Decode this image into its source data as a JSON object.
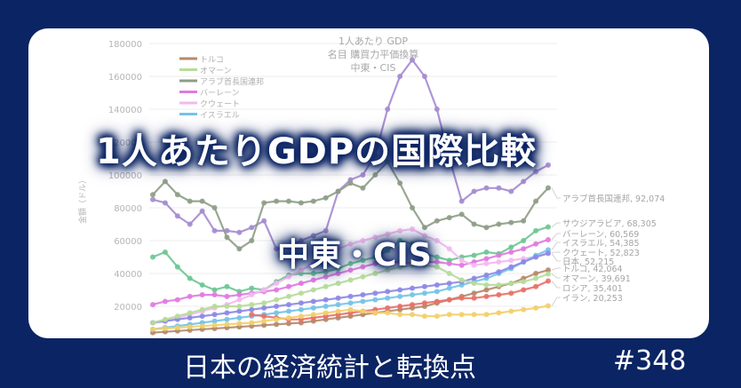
{
  "banner": {
    "main_title": "1人あたりGDPの国際比較",
    "subtitle": "中東・CIS",
    "series_name": "日本の経済統計と転換点",
    "episode": "#348",
    "colors": {
      "background": "#0b2463",
      "card": "#ffffff",
      "text": "#ffffff"
    }
  },
  "chart_data": {
    "type": "line",
    "title": [
      "1人あたり GDP",
      "名目 購買力平価換算",
      "中東・CIS"
    ],
    "xlabel": "",
    "ylabel": "金額（ドル）",
    "ylim": [
      0,
      180000
    ],
    "yticks": [
      "20000",
      "40000",
      "60000",
      "80000",
      "100000",
      "120000",
      "140000",
      "160000",
      "180000"
    ],
    "grid": true,
    "legend_position": "upper-left",
    "legend": [
      {
        "name": "トルコ",
        "color": "#b48a6c"
      },
      {
        "name": "オマーン",
        "color": "#b6dc9a"
      },
      {
        "name": "アラブ首長国連邦",
        "color": "#8e9d86"
      },
      {
        "name": "バーレーン",
        "color": "#e07ae0"
      },
      {
        "name": "クウェート",
        "color": "#f3b9ef"
      },
      {
        "name": "イスラエル",
        "color": "#74c3e8"
      }
    ],
    "series": [
      {
        "name": "",
        "color": "#a58bd0",
        "end_label": "",
        "values": [
          85000,
          83000,
          75000,
          70000,
          78000,
          66000,
          66000,
          65000,
          68000,
          72000,
          55000,
          56000,
          60000,
          63000,
          66000,
          90000,
          97000,
          100000,
          112000,
          140000,
          160000,
          170000,
          160000,
          140000,
          110000,
          84000,
          90000,
          92000,
          92000,
          90000,
          96000,
          102000,
          106000
        ]
      },
      {
        "name": "アラブ首長国連邦",
        "color": "#8e9d86",
        "end_label": "アラブ首長国連邦, 92,074",
        "values": [
          88000,
          96000,
          88000,
          84000,
          84000,
          80000,
          62000,
          55000,
          60000,
          83000,
          84000,
          84000,
          83000,
          84000,
          86000,
          90000,
          95000,
          92000,
          100000,
          108000,
          95000,
          80000,
          68000,
          72000,
          74000,
          76000,
          70000,
          68000,
          70000,
          71000,
          72000,
          84000,
          92074
        ]
      },
      {
        "name": "サウジアラビア",
        "color": "#6dc693",
        "end_label": "サウジアラビア, 68,305",
        "values": [
          50000,
          53000,
          44000,
          37000,
          33000,
          30000,
          32000,
          29000,
          31000,
          30000,
          35000,
          39000,
          40000,
          40000,
          41000,
          43000,
          46000,
          48000,
          50000,
          54000,
          60000,
          58000,
          52000,
          50000,
          48000,
          50000,
          51000,
          53000,
          52000,
          56000,
          60000,
          66000,
          68305
        ]
      },
      {
        "name": "バーレーン",
        "color": "#e07ae0",
        "end_label": "バーレーン, 60,569",
        "values": [
          21000,
          23000,
          24000,
          26000,
          27000,
          27000,
          26000,
          27000,
          28000,
          29000,
          30000,
          32000,
          34000,
          36000,
          38000,
          40000,
          42000,
          44000,
          46000,
          47000,
          47000,
          46000,
          47000,
          47000,
          46000,
          45000,
          47000,
          49000,
          51000,
          53000,
          55000,
          58000,
          60569
        ]
      },
      {
        "name": "クウェート",
        "color": "#f3b9ef",
        "end_label": "クウェート, 52,823",
        "values": [
          10000,
          11000,
          13000,
          15000,
          17000,
          19000,
          21000,
          24000,
          27000,
          30000,
          34000,
          38000,
          42000,
          46000,
          50000,
          55000,
          58000,
          60000,
          62000,
          64000,
          66000,
          67000,
          63000,
          60000,
          55000,
          48000,
          45000,
          46000,
          47000,
          48000,
          49000,
          50000,
          52823
        ]
      },
      {
        "name": "イスラエル",
        "color": "#74c3e8",
        "end_label": "イスラエル, 54,385",
        "values": [
          6000,
          7000,
          8000,
          9000,
          10000,
          11000,
          12000,
          13000,
          14000,
          15000,
          16000,
          17000,
          18000,
          19000,
          20000,
          21000,
          22000,
          23000,
          24000,
          25000,
          26000,
          27000,
          28000,
          29000,
          31000,
          33000,
          35000,
          37000,
          40000,
          43000,
          47000,
          51000,
          54385
        ]
      },
      {
        "name": "日本",
        "color": "#8c88e6",
        "end_label": "日本, 52,215",
        "values": [
          10000,
          11000,
          12000,
          13000,
          14000,
          15000,
          16000,
          17000,
          18000,
          19000,
          20000,
          21000,
          22000,
          23000,
          24000,
          25000,
          26000,
          27000,
          28000,
          29000,
          30000,
          31000,
          32000,
          33000,
          34000,
          35000,
          37000,
          39000,
          41000,
          44000,
          47000,
          50000,
          52215
        ]
      },
      {
        "name": "トルコ",
        "color": "#b48a6c",
        "end_label": "トルコ, 42,064",
        "values": [
          4000,
          4500,
          5000,
          5500,
          6000,
          6500,
          7000,
          7500,
          8000,
          8500,
          9000,
          9500,
          10000,
          11000,
          12000,
          13000,
          14000,
          15000,
          16000,
          17000,
          18000,
          19000,
          20000,
          22000,
          24000,
          26000,
          28000,
          30000,
          32000,
          34000,
          37000,
          40000,
          42064
        ]
      },
      {
        "name": "オマーン",
        "color": "#b6dc9a",
        "end_label": "オマーン, 39,691",
        "values": [
          10000,
          12000,
          14000,
          16000,
          18000,
          20000,
          20000,
          20000,
          21000,
          22000,
          24000,
          26000,
          28000,
          30000,
          32000,
          34000,
          36000,
          38000,
          40000,
          42000,
          44000,
          45000,
          45000,
          44000,
          40000,
          36000,
          34000,
          33000,
          33000,
          34000,
          35000,
          37000,
          39691
        ]
      },
      {
        "name": "ロシア",
        "color": "#e8716a",
        "end_label": "ロシア, 35,401",
        "values": [
          null,
          null,
          null,
          null,
          null,
          null,
          null,
          null,
          15000,
          14000,
          13000,
          12000,
          12000,
          13000,
          14000,
          15000,
          16000,
          17000,
          18000,
          19000,
          20000,
          21000,
          22000,
          23000,
          24000,
          25000,
          25000,
          26000,
          27000,
          28000,
          30000,
          32000,
          35401
        ]
      },
      {
        "name": "イラン",
        "color": "#f2cf6b",
        "end_label": "イラン, 20,253",
        "values": [
          6000,
          6500,
          7000,
          7500,
          8000,
          8500,
          9000,
          9500,
          10000,
          11000,
          12000,
          13000,
          14000,
          15000,
          16000,
          17000,
          18000,
          17000,
          16000,
          16000,
          15000,
          15000,
          14000,
          14000,
          15000,
          15000,
          15000,
          15000,
          16000,
          17000,
          18000,
          19000,
          20253
        ]
      }
    ]
  }
}
